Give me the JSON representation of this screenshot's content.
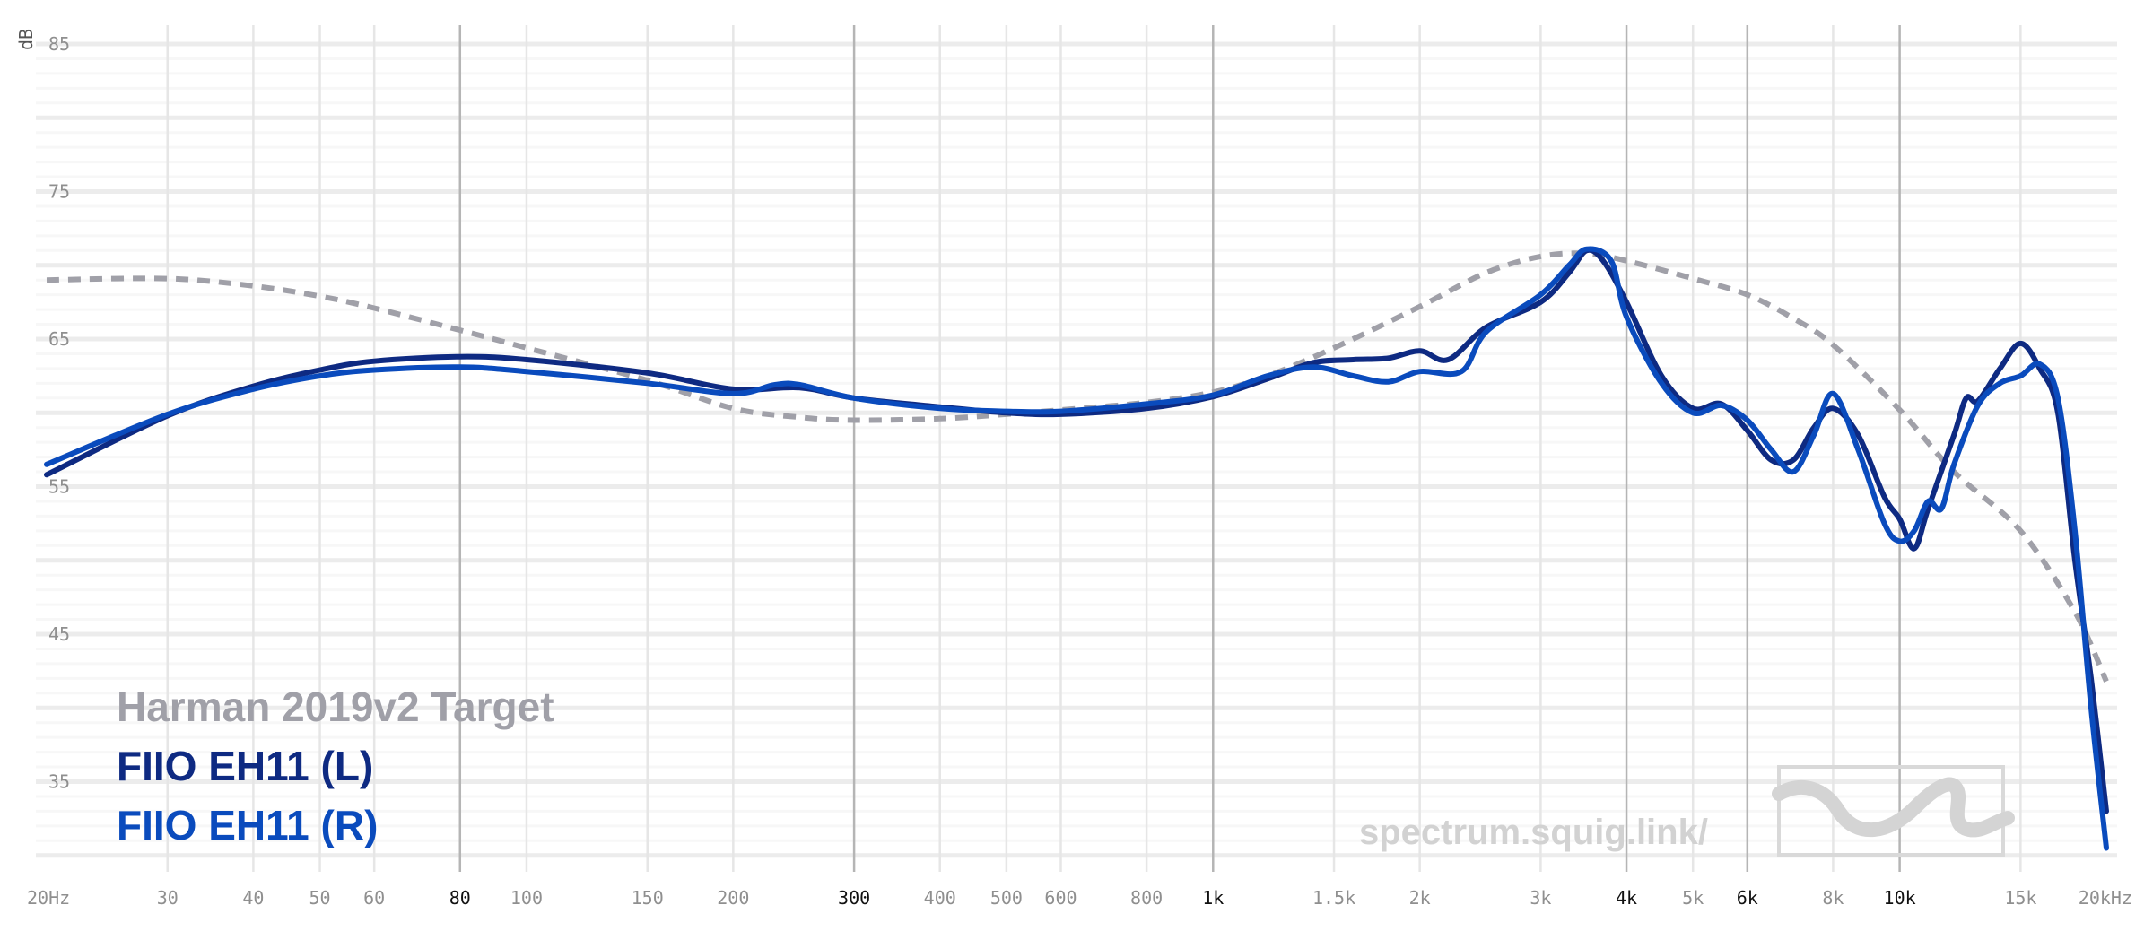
{
  "chart_data": {
    "type": "line",
    "title": "",
    "xlabel": "",
    "ylabel": "dB",
    "xscale": "log",
    "xlim": [
      20,
      20000
    ],
    "ylim": [
      30,
      86
    ],
    "grid": true,
    "x_ticks": [
      {
        "value": 20,
        "label": "20Hz",
        "major": false
      },
      {
        "value": 30,
        "label": "30",
        "major": false
      },
      {
        "value": 40,
        "label": "40",
        "major": false
      },
      {
        "value": 50,
        "label": "50",
        "major": false
      },
      {
        "value": 60,
        "label": "60",
        "major": false
      },
      {
        "value": 80,
        "label": "80",
        "major": true
      },
      {
        "value": 100,
        "label": "100",
        "major": false
      },
      {
        "value": 150,
        "label": "150",
        "major": false
      },
      {
        "value": 200,
        "label": "200",
        "major": false
      },
      {
        "value": 300,
        "label": "300",
        "major": true
      },
      {
        "value": 400,
        "label": "400",
        "major": false
      },
      {
        "value": 500,
        "label": "500",
        "major": false
      },
      {
        "value": 600,
        "label": "600",
        "major": false
      },
      {
        "value": 800,
        "label": "800",
        "major": false
      },
      {
        "value": 1000,
        "label": "1k",
        "major": true
      },
      {
        "value": 1500,
        "label": "1.5k",
        "major": false
      },
      {
        "value": 2000,
        "label": "2k",
        "major": false
      },
      {
        "value": 3000,
        "label": "3k",
        "major": false
      },
      {
        "value": 4000,
        "label": "4k",
        "major": true
      },
      {
        "value": 5000,
        "label": "5k",
        "major": false
      },
      {
        "value": 6000,
        "label": "6k",
        "major": true
      },
      {
        "value": 8000,
        "label": "8k",
        "major": false
      },
      {
        "value": 10000,
        "label": "10k",
        "major": true
      },
      {
        "value": 15000,
        "label": "15k",
        "major": false
      },
      {
        "value": 20000,
        "label": "20kHz",
        "major": false
      }
    ],
    "y_ticks": [
      {
        "value": 85,
        "label": "85"
      },
      {
        "value": 75,
        "label": "75"
      },
      {
        "value": 65,
        "label": "65"
      },
      {
        "value": 55,
        "label": "55"
      },
      {
        "value": 45,
        "label": "45"
      },
      {
        "value": 35,
        "label": "35"
      }
    ],
    "legend_position": "bottom-left",
    "series": [
      {
        "name": "Harman 2019v2 Target",
        "color": "#a0a0a8",
        "style": "dashed",
        "points": [
          [
            20,
            69.0
          ],
          [
            30,
            69.1
          ],
          [
            40,
            68.6
          ],
          [
            50,
            67.9
          ],
          [
            60,
            67.1
          ],
          [
            80,
            65.6
          ],
          [
            100,
            64.4
          ],
          [
            150,
            62.2
          ],
          [
            200,
            60.3
          ],
          [
            250,
            59.7
          ],
          [
            300,
            59.5
          ],
          [
            400,
            59.6
          ],
          [
            500,
            59.9
          ],
          [
            600,
            60.2
          ],
          [
            800,
            60.7
          ],
          [
            1000,
            61.4
          ],
          [
            1200,
            62.5
          ],
          [
            1500,
            64.4
          ],
          [
            2000,
            67.2
          ],
          [
            2500,
            69.5
          ],
          [
            3000,
            70.6
          ],
          [
            3500,
            70.8
          ],
          [
            4000,
            70.3
          ],
          [
            5000,
            69.1
          ],
          [
            6000,
            68.0
          ],
          [
            7000,
            66.4
          ],
          [
            8000,
            64.6
          ],
          [
            10000,
            60.2
          ],
          [
            12000,
            56.0
          ],
          [
            15000,
            52.0
          ],
          [
            18000,
            46.5
          ],
          [
            20000,
            41.8
          ]
        ]
      },
      {
        "name": "FIIO EH11 (L)",
        "color": "#0e2a82",
        "style": "solid",
        "points": [
          [
            20,
            55.8
          ],
          [
            30,
            59.8
          ],
          [
            40,
            61.8
          ],
          [
            50,
            62.9
          ],
          [
            60,
            63.5
          ],
          [
            80,
            63.8
          ],
          [
            100,
            63.6
          ],
          [
            150,
            62.7
          ],
          [
            200,
            61.6
          ],
          [
            250,
            61.7
          ],
          [
            300,
            61.0
          ],
          [
            400,
            60.4
          ],
          [
            500,
            60.0
          ],
          [
            600,
            59.9
          ],
          [
            800,
            60.3
          ],
          [
            1000,
            61.1
          ],
          [
            1200,
            62.3
          ],
          [
            1400,
            63.4
          ],
          [
            1600,
            63.6
          ],
          [
            1800,
            63.7
          ],
          [
            2000,
            64.2
          ],
          [
            2200,
            63.6
          ],
          [
            2500,
            65.8
          ],
          [
            3000,
            67.5
          ],
          [
            3300,
            69.5
          ],
          [
            3500,
            71.0
          ],
          [
            3700,
            70.3
          ],
          [
            4000,
            67.5
          ],
          [
            4500,
            62.5
          ],
          [
            5000,
            60.3
          ],
          [
            5500,
            60.6
          ],
          [
            6000,
            58.8
          ],
          [
            6500,
            56.8
          ],
          [
            7000,
            56.8
          ],
          [
            7500,
            59.0
          ],
          [
            8000,
            60.3
          ],
          [
            8700,
            58.5
          ],
          [
            9500,
            54.3
          ],
          [
            10000,
            52.8
          ],
          [
            10500,
            50.8
          ],
          [
            11000,
            53.5
          ],
          [
            12000,
            58.5
          ],
          [
            12500,
            61.0
          ],
          [
            13000,
            60.8
          ],
          [
            14000,
            63.0
          ],
          [
            15000,
            64.7
          ],
          [
            16000,
            63.0
          ],
          [
            17000,
            60.0
          ],
          [
            18000,
            50.0
          ],
          [
            19000,
            42.0
          ],
          [
            20000,
            33.0
          ]
        ]
      },
      {
        "name": "FIIO EH11 (R)",
        "color": "#0a4bbd",
        "style": "solid",
        "points": [
          [
            20,
            56.5
          ],
          [
            30,
            59.9
          ],
          [
            40,
            61.6
          ],
          [
            50,
            62.5
          ],
          [
            60,
            62.9
          ],
          [
            80,
            63.1
          ],
          [
            100,
            62.8
          ],
          [
            150,
            62.0
          ],
          [
            200,
            61.3
          ],
          [
            230,
            61.9
          ],
          [
            250,
            61.9
          ],
          [
            300,
            61.0
          ],
          [
            400,
            60.3
          ],
          [
            500,
            60.1
          ],
          [
            600,
            60.1
          ],
          [
            800,
            60.6
          ],
          [
            1000,
            61.2
          ],
          [
            1200,
            62.5
          ],
          [
            1400,
            63.1
          ],
          [
            1600,
            62.5
          ],
          [
            1800,
            62.1
          ],
          [
            2000,
            62.8
          ],
          [
            2300,
            62.8
          ],
          [
            2500,
            65.5
          ],
          [
            3000,
            68.0
          ],
          [
            3300,
            70.0
          ],
          [
            3500,
            71.1
          ],
          [
            3800,
            70.3
          ],
          [
            4000,
            66.5
          ],
          [
            4500,
            62.0
          ],
          [
            5000,
            60.0
          ],
          [
            5500,
            60.5
          ],
          [
            6000,
            59.5
          ],
          [
            6500,
            57.5
          ],
          [
            7000,
            56.0
          ],
          [
            7500,
            58.5
          ],
          [
            8000,
            61.3
          ],
          [
            8700,
            57.5
          ],
          [
            9500,
            52.5
          ],
          [
            10000,
            51.3
          ],
          [
            10500,
            52.0
          ],
          [
            11000,
            54.0
          ],
          [
            11500,
            53.5
          ],
          [
            12000,
            56.5
          ],
          [
            13000,
            60.5
          ],
          [
            14000,
            62.0
          ],
          [
            15000,
            62.5
          ],
          [
            16000,
            63.3
          ],
          [
            17000,
            61.0
          ],
          [
            18000,
            52.0
          ],
          [
            19000,
            40.0
          ],
          [
            20000,
            30.5
          ]
        ]
      }
    ]
  },
  "watermark": {
    "text": "spectrum.squig.link/",
    "logo_icon": "squiglink-squiggle-logo"
  }
}
